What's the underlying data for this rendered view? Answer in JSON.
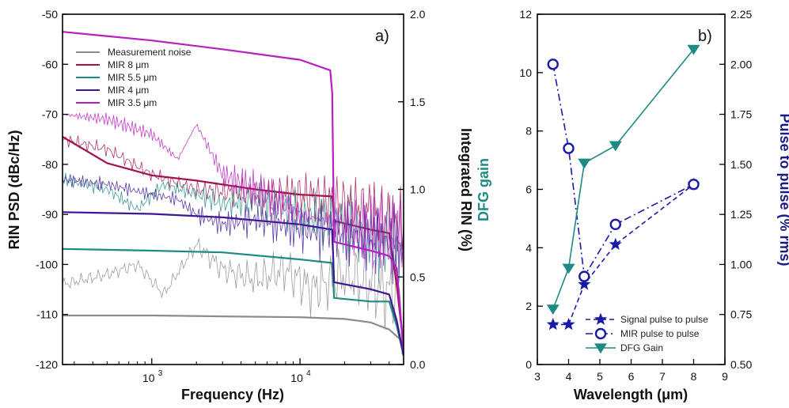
{
  "chart_data": [
    {
      "type": "line",
      "panel_label": "a)",
      "xlabel": "Frequency (Hz)",
      "ylabel": "RIN PSD (dBc/Hz)",
      "y2label": "Integrated RIN (%)",
      "x_scale": "log",
      "xlim": [
        250,
        50000
      ],
      "ylim": [
        -120,
        -50
      ],
      "y2lim": [
        0.0,
        2.0
      ],
      "x_ticks": [
        "10",
        "10"
      ],
      "x_tick_exp": [
        "3",
        "4"
      ],
      "y_ticks": [
        "-50",
        "-60",
        "-70",
        "-80",
        "-90",
        "-100",
        "-110",
        "-120"
      ],
      "y2_ticks": [
        "2.0",
        "1.5",
        "1.0",
        "0.5",
        "0.0"
      ],
      "legend_position": "upper-left",
      "series": [
        {
          "name": "Measurement noise",
          "color": "#8c8c8c",
          "psd_x": [
            250,
            500,
            800,
            1200,
            2000,
            3000,
            5000,
            8000,
            12000,
            20000,
            30000,
            45000,
            50000
          ],
          "psd_y": [
            -104,
            -102,
            -100,
            -106,
            -96,
            -101,
            -103,
            -101,
            -105,
            -102,
            -104,
            -106,
            -110
          ],
          "integrated_x": [
            250,
            1000,
            3000,
            10000,
            20000,
            30000,
            40000,
            48000,
            50000
          ],
          "integrated_y": [
            0.28,
            0.28,
            0.275,
            0.27,
            0.26,
            0.24,
            0.2,
            0.14,
            0.05
          ]
        },
        {
          "name": "MIR 8 μm",
          "color": "#a3124f",
          "psd_x": [
            250,
            500,
            1000,
            2000,
            5000,
            10000,
            20000,
            30000,
            45000,
            50000
          ],
          "psd_y": [
            -75,
            -77,
            -82,
            -85,
            -86,
            -86,
            -88,
            -89,
            -92,
            -92
          ],
          "integrated_x": [
            250,
            500,
            1000,
            2000,
            5000,
            10000,
            16500,
            17000,
            30000,
            40000,
            45000,
            50000
          ],
          "integrated_y": [
            1.3,
            1.15,
            1.08,
            1.05,
            1.0,
            0.97,
            0.96,
            0.82,
            0.77,
            0.75,
            0.45,
            0.1
          ]
        },
        {
          "name": "MIR 5.5 μm",
          "color": "#1d8a83",
          "psd_x": [
            250,
            500,
            800,
            1200,
            2000,
            3000,
            5000,
            10000,
            20000,
            30000,
            45000,
            50000
          ],
          "psd_y": [
            -83,
            -85,
            -89,
            -84,
            -86,
            -88,
            -87,
            -90,
            -92,
            -95,
            -97,
            -98
          ],
          "integrated_x": [
            250,
            1000,
            3000,
            10000,
            16500,
            17000,
            30000,
            40000,
            45000,
            50000
          ],
          "integrated_y": [
            0.66,
            0.65,
            0.64,
            0.6,
            0.58,
            0.38,
            0.36,
            0.36,
            0.22,
            0.05
          ]
        },
        {
          "name": "MIR 4 μm",
          "color": "#3f1796",
          "psd_x": [
            250,
            500,
            1000,
            1500,
            2000,
            3000,
            5000,
            10000,
            20000,
            30000,
            45000,
            50000
          ],
          "psd_y": [
            -83,
            -84,
            -86,
            -87,
            -90,
            -92,
            -91,
            -93,
            -94,
            -95,
            -96,
            -97
          ],
          "integrated_x": [
            250,
            1000,
            3000,
            10000,
            16500,
            17000,
            30000,
            40000,
            45000,
            50000
          ],
          "integrated_y": [
            0.87,
            0.86,
            0.84,
            0.8,
            0.77,
            0.47,
            0.43,
            0.4,
            0.25,
            0.05
          ]
        },
        {
          "name": "MIR 3.5 μm",
          "color": "#b61fc0",
          "psd_x": [
            250,
            500,
            1000,
            1500,
            2000,
            3000,
            5000,
            10000,
            20000,
            30000,
            45000,
            50000
          ],
          "psd_y": [
            -70,
            -71,
            -74,
            -79,
            -72,
            -82,
            -85,
            -90,
            -92,
            -93,
            -94,
            -95
          ],
          "integrated_x": [
            250,
            1000,
            3000,
            10000,
            16000,
            16500,
            17000,
            30000,
            40000,
            45000,
            50000
          ],
          "integrated_y": [
            1.9,
            1.85,
            1.8,
            1.74,
            1.68,
            1.55,
            0.7,
            0.65,
            0.62,
            0.55,
            0.07
          ]
        }
      ]
    },
    {
      "type": "line",
      "panel_label": "b)",
      "xlabel": "Wavelength (μm)",
      "ylabel": "DFG gain",
      "y2label": "Pulse to pulse (% rms)",
      "xlim": [
        3,
        9
      ],
      "ylim": [
        0,
        12
      ],
      "y2lim": [
        0.5,
        2.25
      ],
      "x_ticks": [
        "3",
        "4",
        "5",
        "6",
        "7",
        "8",
        "9"
      ],
      "y_ticks": [
        "0",
        "2",
        "4",
        "6",
        "8",
        "10",
        "12"
      ],
      "y2_ticks": [
        "0.50",
        "0.75",
        "1.00",
        "1.25",
        "1.50",
        "1.75",
        "2.00",
        "2.25"
      ],
      "legend_position": "lower-right",
      "series": [
        {
          "name": "Signal pulse to pulse",
          "axis": "right",
          "color": "#1a1aa8",
          "marker": "star",
          "dash": "6,4",
          "x": [
            3.5,
            4.0,
            4.5,
            5.5,
            8.0
          ],
          "y": [
            0.7,
            0.7,
            0.9,
            1.1,
            1.4
          ]
        },
        {
          "name": "MIR pulse to pulse",
          "axis": "right",
          "color": "#1a1aa8",
          "marker": "circle",
          "dash": "9,4,2,4",
          "x": [
            3.5,
            4.0,
            4.5,
            5.5,
            8.0
          ],
          "y": [
            2.0,
            1.58,
            0.94,
            1.2,
            1.4
          ]
        },
        {
          "name": "DFG Gain",
          "axis": "left",
          "color": "#1d8a83",
          "marker": "triangle-down",
          "dash": "",
          "x": [
            3.5,
            4.0,
            4.5,
            5.5,
            8.0
          ],
          "y": [
            1.9,
            3.3,
            6.9,
            7.5,
            10.8
          ]
        }
      ]
    }
  ]
}
